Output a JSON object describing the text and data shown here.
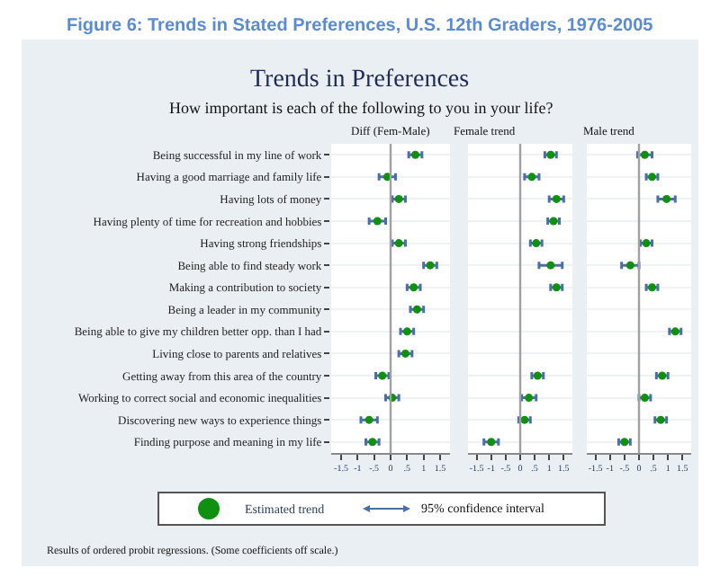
{
  "chart_data": [
    {
      "type": "other",
      "title": "Figure 6: Trends in Stated Preferences, U.S. 12th Graders, 1976-2005",
      "subtitle": "Trends in Preferences",
      "annotations": [
        "How important is each of the following to you in your life?",
        "95% confidence interval",
        "Results of ordered probit regressions. (Some coefficients off scale.)"
      ]
    },
    {
      "type": "scatter",
      "orientation": "horizontal",
      "title": "Diff (Fem-Male)",
      "categories": [
        "Being successful in my line of work",
        "Having a good marriage and family life",
        "Having lots of money",
        "Having plenty of time for recreation and hobbies",
        "Having strong friendships",
        "Being able to find steady work",
        "Making a contribution to society",
        "Being a leader in my community",
        "Being able to give my children better opp. than I had",
        "Living close to parents and relatives",
        "Getting away from this area of the country",
        "Working to correct social and economic inequalities",
        "Discovering new ways to experience things",
        "Finding purpose and meaning in my life"
      ],
      "series": [
        {
          "name": "Estimated trend",
          "color": "#109010",
          "values": [
            0.75,
            -0.1,
            0.25,
            -0.4,
            0.25,
            1.2,
            0.7,
            0.8,
            0.5,
            0.45,
            -0.25,
            0.05,
            -0.65,
            -0.55
          ],
          "errors": [
            0.2,
            0.25,
            0.2,
            0.25,
            0.2,
            0.2,
            0.2,
            0.2,
            0.2,
            0.2,
            0.2,
            0.2,
            0.25,
            0.2
          ]
        }
      ],
      "xlim": [
        -1.8,
        1.8
      ],
      "xticks": [
        {
          "value": -1.5,
          "label": "-1.5"
        },
        -1,
        {
          "value": -0.5,
          "label": "-.5"
        },
        0,
        {
          "value": 0.5,
          "label": ".5"
        },
        1,
        {
          "value": 1.5,
          "label": "1.5"
        }
      ],
      "ref_lines": [
        {
          "axis": "x",
          "value": 0,
          "label": null,
          "color": "#a0a0a0"
        }
      ],
      "grid": "y",
      "marker": "circle",
      "legend": "bottom"
    },
    {
      "type": "scatter",
      "orientation": "horizontal",
      "title": "Female trend",
      "tick_labels": "x",
      "categories": [
        "Being successful in my line of work",
        "Having a good marriage and family life",
        "Having lots of money",
        "Having plenty of time for recreation and hobbies",
        "Having strong friendships",
        "Being able to find steady work",
        "Making a contribution to society",
        "Being a leader in my community",
        "Being able to give my children better opp. than I had",
        "Living close to parents and relatives",
        "Getting away from this area of the country",
        "Working to correct social and economic inequalities",
        "Discovering new ways to experience things",
        "Finding purpose and meaning in my life"
      ],
      "series": [
        {
          "color": "#109010",
          "values": [
            1.05,
            0.4,
            1.25,
            1.15,
            0.55,
            1.05,
            1.25,
            null,
            null,
            null,
            0.6,
            0.3,
            0.15,
            -1.0
          ],
          "errors": [
            0.2,
            0.25,
            0.25,
            0.2,
            0.2,
            0.4,
            0.2,
            null,
            null,
            null,
            0.2,
            0.25,
            0.2,
            0.25
          ]
        }
      ],
      "xlim": [
        -1.8,
        1.8
      ],
      "xticks": [
        {
          "value": -1.5,
          "label": "-1.5"
        },
        -1,
        {
          "value": -0.5,
          "label": "-.5"
        },
        0,
        {
          "value": 0.5,
          "label": ".5"
        },
        1,
        {
          "value": 1.5,
          "label": "1.5"
        }
      ],
      "ref_lines": [
        {
          "axis": "x",
          "value": 0,
          "label": null,
          "color": "#a0a0a0"
        }
      ],
      "grid": "y",
      "marker": "circle"
    },
    {
      "type": "scatter",
      "orientation": "horizontal",
      "title": "Male trend",
      "tick_labels": "x",
      "categories": [
        "Being successful in my line of work",
        "Having a good marriage and family life",
        "Having lots of money",
        "Having plenty of time for recreation and hobbies",
        "Having strong friendships",
        "Being able to find steady work",
        "Making a contribution to society",
        "Being a leader in my community",
        "Being able to give my children better opp. than I had",
        "Living close to parents and relatives",
        "Getting away from this area of the country",
        "Working to correct social and economic inequalities",
        "Discovering new ways to experience things",
        "Finding purpose and meaning in my life"
      ],
      "series": [
        {
          "color": "#109010",
          "values": [
            0.2,
            0.45,
            0.95,
            null,
            0.25,
            -0.3,
            0.45,
            null,
            1.25,
            null,
            0.8,
            0.2,
            0.75,
            -0.5
          ],
          "errors": [
            0.25,
            0.2,
            0.3,
            null,
            0.2,
            0.3,
            0.2,
            null,
            0.2,
            null,
            0.2,
            0.2,
            0.2,
            0.2
          ]
        }
      ],
      "xlim": [
        -1.8,
        1.8
      ],
      "xticks": [
        {
          "value": -1.5,
          "label": "-1.5"
        },
        -1,
        {
          "value": -0.5,
          "label": "-.5"
        },
        0,
        {
          "value": 0.5,
          "label": ".5"
        },
        1,
        {
          "value": 1.5,
          "label": "1.5"
        }
      ],
      "ref_lines": [
        {
          "axis": "x",
          "value": 0,
          "label": null,
          "color": "#a0a0a0"
        }
      ],
      "grid": "y",
      "marker": "circle"
    }
  ]
}
